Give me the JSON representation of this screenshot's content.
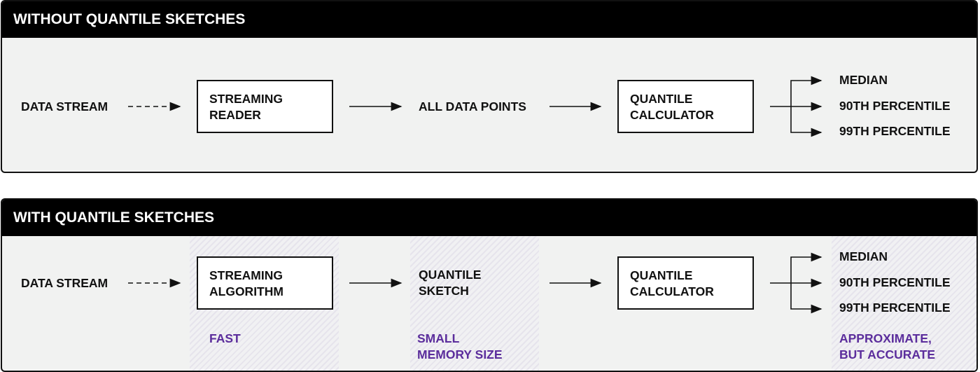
{
  "accent_color": "#5b2d9c",
  "without": {
    "title": "WITHOUT QUANTILE SKETCHES",
    "source": "DATA STREAM",
    "reader": [
      "STREAMING",
      "READER"
    ],
    "middle": "ALL DATA POINTS",
    "calculator": [
      "QUANTILE",
      "CALCULATOR"
    ],
    "outputs": [
      "MEDIAN",
      "90TH PERCENTILE",
      "99TH PERCENTILE"
    ]
  },
  "with": {
    "title": "WITH QUANTILE SKETCHES",
    "source": "DATA STREAM",
    "algorithm": [
      "STREAMING",
      "ALGORITHM"
    ],
    "sketch": [
      "QUANTILE",
      "SKETCH"
    ],
    "calculator": [
      "QUANTILE",
      "CALCULATOR"
    ],
    "outputs": [
      "MEDIAN",
      "90TH PERCENTILE",
      "99TH PERCENTILE"
    ],
    "notes": {
      "algorithm": "FAST",
      "sketch": [
        "SMALL",
        "MEMORY SIZE"
      ],
      "outputs": [
        "APPROXIMATE,",
        "BUT ACCURATE"
      ]
    }
  }
}
